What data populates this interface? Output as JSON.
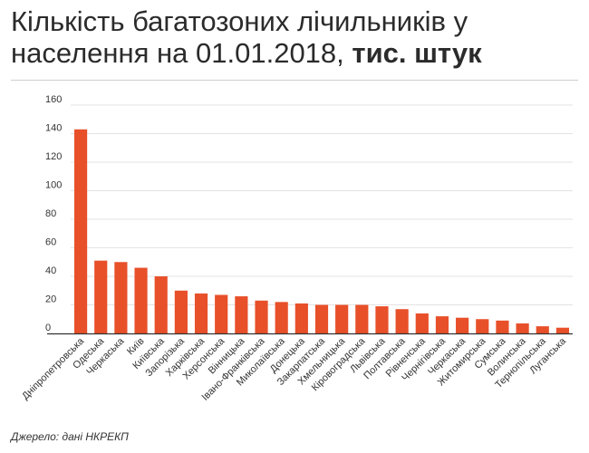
{
  "title": {
    "main": "Кількість багатозоних лічильників у населення на 01.01.2018, ",
    "bold": "тис. штук"
  },
  "source": "Джерело: дані НКРЕКП",
  "colors": {
    "bar": "#e8502a",
    "grid": "#e3e3e3",
    "axis": "#333333"
  },
  "chart_data": {
    "type": "bar",
    "title": "Кількість багатозоних лічильників у населення на 01.01.2018, тис. штук",
    "xlabel": "",
    "ylabel": "",
    "ylim": [
      0,
      160
    ],
    "yticks": [
      0,
      20,
      40,
      60,
      80,
      100,
      120,
      140,
      160
    ],
    "grid": true,
    "categories": [
      "Дніпропетровська",
      "Одеська",
      "Черкаська",
      "Київ",
      "Київська",
      "Запорізька",
      "Харківська",
      "Херсонська",
      "Вінницька",
      "Івано-Франківська",
      "Миколаївська",
      "Донецька",
      "Закарпатська",
      "Хмельницька",
      "Кіровоградська",
      "Львівська",
      "Полтавська",
      "Рівненська",
      "Чернігівська",
      "Черкаська",
      "Житомирська",
      "Сумська",
      "Волинська",
      "Тернопільська",
      "Луганська"
    ],
    "values": [
      143,
      51,
      50,
      46,
      40,
      30,
      28,
      27,
      26,
      23,
      22,
      21,
      20,
      20,
      20,
      19,
      17,
      14,
      12,
      11,
      10,
      9,
      7,
      5,
      4
    ]
  }
}
